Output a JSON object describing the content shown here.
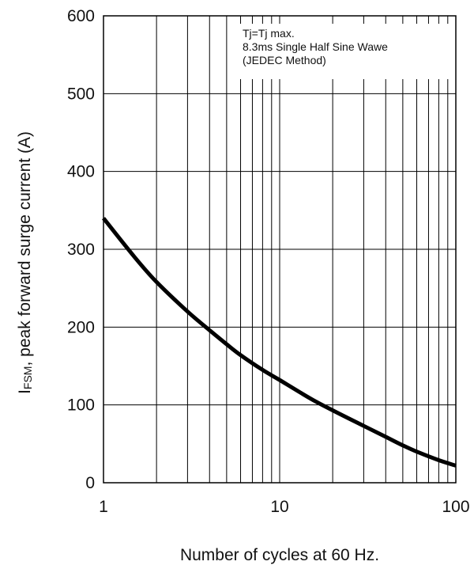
{
  "chart_data": {
    "type": "line",
    "xlabel": "Number of cycles at 60 Hz.",
    "ylabel_main": "I",
    "ylabel_sub": "FSM",
    "ylabel_rest": ", peak forward surge current (A)",
    "x_scale": "log",
    "xlim": [
      1,
      100
    ],
    "ylim": [
      0,
      600
    ],
    "x_ticks": [
      1,
      10,
      100
    ],
    "x_tick_labels": [
      "1",
      "10",
      "100"
    ],
    "y_ticks": [
      0,
      100,
      200,
      300,
      400,
      500,
      600
    ],
    "y_tick_labels": [
      "0",
      "100",
      "200",
      "300",
      "400",
      "500",
      "600"
    ],
    "grid": true,
    "annotations": [
      "Tj=Tj max.",
      "8.3ms Single Half Sine Wawe",
      "(JEDEC Method)"
    ],
    "series": [
      {
        "x": [
          1,
          1.5,
          2,
          3,
          4,
          5,
          6,
          8,
          10,
          15,
          20,
          30,
          40,
          50,
          60,
          80,
          100
        ],
        "y": [
          340,
          290,
          258,
          220,
          196,
          178,
          164,
          145,
          132,
          108,
          93,
          73,
          59,
          48,
          40,
          29,
          22
        ]
      }
    ]
  }
}
